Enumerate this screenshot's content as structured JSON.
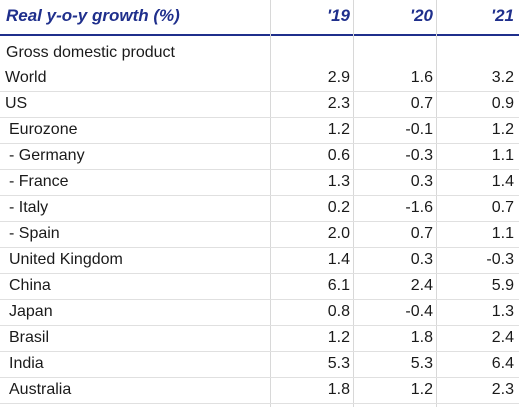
{
  "header": {
    "title": "Real y-o-y growth (%)",
    "years": [
      "'19",
      "'20",
      "'21"
    ]
  },
  "section_label": "Gross domestic product",
  "rows": [
    {
      "label": "World",
      "indent": 0,
      "values": [
        "2.9",
        "1.6",
        "3.2"
      ]
    },
    {
      "label": "US",
      "indent": 0,
      "values": [
        "2.3",
        "0.7",
        "0.9"
      ]
    },
    {
      "label": "Eurozone",
      "indent": 1,
      "values": [
        "1.2",
        "-0.1",
        "1.2"
      ]
    },
    {
      "label": "- Germany",
      "indent": 1,
      "values": [
        "0.6",
        "-0.3",
        "1.1"
      ]
    },
    {
      "label": "- France",
      "indent": 1,
      "values": [
        "1.3",
        "0.3",
        "1.4"
      ]
    },
    {
      "label": "- Italy",
      "indent": 1,
      "values": [
        "0.2",
        "-1.6",
        "0.7"
      ]
    },
    {
      "label": "- Spain",
      "indent": 1,
      "values": [
        "2.0",
        "0.7",
        "1.1"
      ]
    },
    {
      "label": "United Kingdom",
      "indent": 1,
      "values": [
        "1.4",
        "0.3",
        "-0.3"
      ]
    },
    {
      "label": "China",
      "indent": 1,
      "values": [
        "6.1",
        "2.4",
        "5.9"
      ]
    },
    {
      "label": "Japan",
      "indent": 1,
      "values": [
        "0.8",
        "-0.4",
        "1.3"
      ]
    },
    {
      "label": "Brasil",
      "indent": 1,
      "values": [
        "1.2",
        "1.8",
        "2.4"
      ]
    },
    {
      "label": "India",
      "indent": 1,
      "values": [
        "5.3",
        "5.3",
        "6.4"
      ]
    },
    {
      "label": "Australia",
      "indent": 1,
      "values": [
        "1.8",
        "1.2",
        "2.3"
      ]
    }
  ],
  "colors": {
    "header_text": "#1f2f8c",
    "header_rule": "#1f2f8c",
    "row_rule": "#e0e0e0",
    "text": "#1a1a1a"
  }
}
